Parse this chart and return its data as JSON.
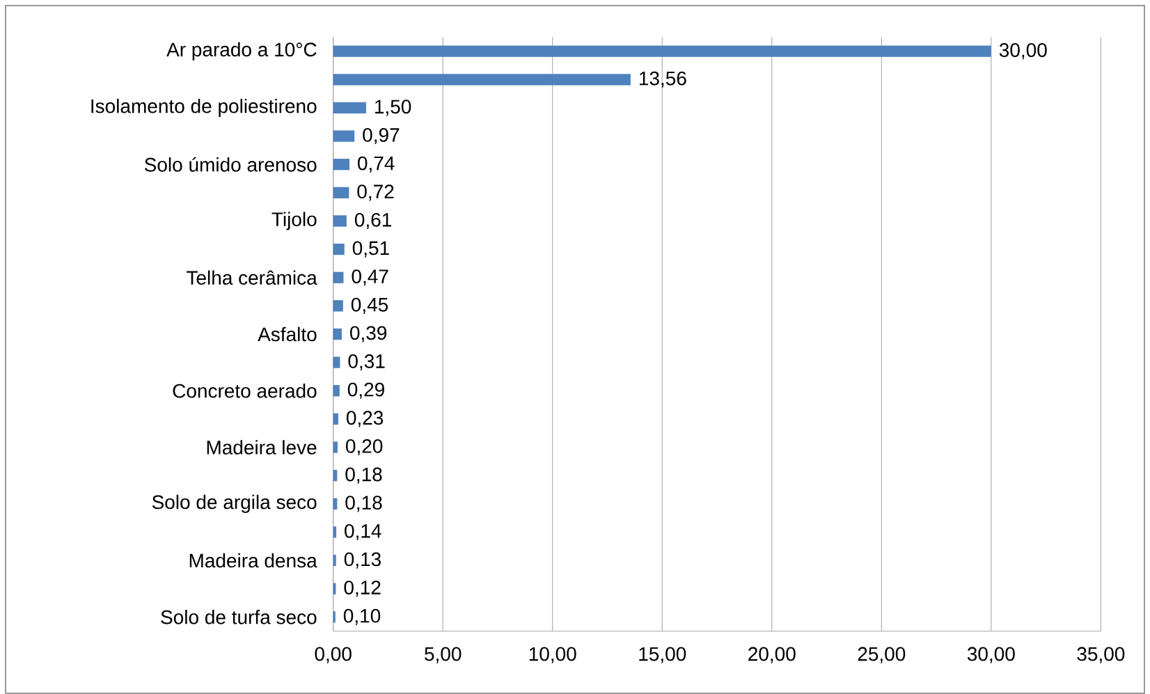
{
  "chart_data": {
    "type": "bar",
    "orientation": "horizontal",
    "color": "#4f81bd",
    "grid": "x",
    "categories": [
      "Ar parado a 10°C",
      null,
      "Isolamento de poliestireno",
      null,
      "Solo úmido arenoso",
      null,
      "Tijolo",
      null,
      "Telha cerâmica",
      null,
      "Asfalto",
      null,
      "Concreto aerado",
      null,
      "Madeira leve",
      null,
      "Solo de argila seco",
      null,
      "Madeira densa",
      null,
      "Solo de turfa seco"
    ],
    "values": [
      30.0,
      13.56,
      1.5,
      0.97,
      0.74,
      0.72,
      0.61,
      0.51,
      0.47,
      0.45,
      0.39,
      0.31,
      0.29,
      0.23,
      0.2,
      0.18,
      0.18,
      0.14,
      0.13,
      0.12,
      0.1
    ],
    "value_labels": [
      "30,00",
      "13,56",
      "1,50",
      "0,97",
      "0,74",
      "0,72",
      "0,61",
      "0,51",
      "0,47",
      "0,45",
      "0,39",
      "0,31",
      "0,29",
      "0,23",
      "0,20",
      "0,18",
      "0,18",
      "0,14",
      "0,13",
      "0,12",
      "0,10"
    ],
    "xlim": [
      0,
      35
    ],
    "xticks": [
      {
        "value": 0,
        "label": "0,00"
      },
      {
        "value": 5,
        "label": "5,00"
      },
      {
        "value": 10,
        "label": "10,00"
      },
      {
        "value": 15,
        "label": "15,00"
      },
      {
        "value": 20,
        "label": "20,00"
      },
      {
        "value": 25,
        "label": "25,00"
      },
      {
        "value": 30,
        "label": "30,00"
      },
      {
        "value": 35,
        "label": "35,00"
      }
    ]
  }
}
